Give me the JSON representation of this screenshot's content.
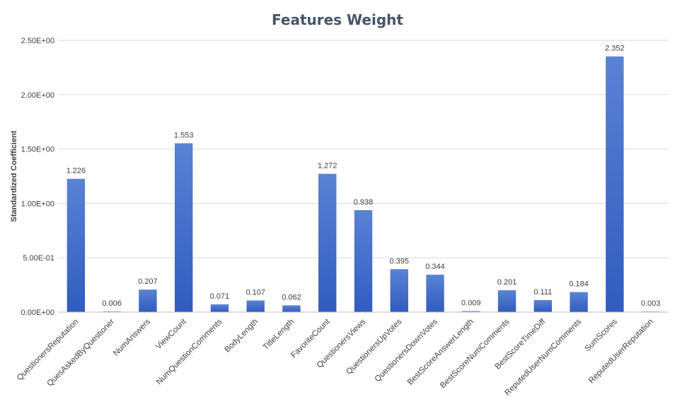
{
  "chart_data": {
    "type": "bar",
    "title": "Features Weight",
    "xlabel": "",
    "ylabel": "Standardized Coefficient",
    "ylim": [
      0,
      2.5
    ],
    "yticks": [
      {
        "value": 0,
        "label": "0.00E+00"
      },
      {
        "value": 0.5,
        "label": "5.00E-01"
      },
      {
        "value": 1.0,
        "label": "1.00E+00"
      },
      {
        "value": 1.5,
        "label": "1.50E+00"
      },
      {
        "value": 2.0,
        "label": "2.00E+00"
      },
      {
        "value": 2.5,
        "label": "2.50E+00"
      }
    ],
    "grid": true,
    "legend": "none",
    "bar_color_top": "#5a82d4",
    "bar_color_bottom": "#2f5cbf",
    "categories": [
      "QuestionersReputation",
      "QuesAskedByQuestioner",
      "NumAnswers",
      "ViewCount",
      "NumQuestionComments",
      "BodyLength",
      "TitleLength",
      "FavoriteCount",
      "QuestionersViews",
      "QuestionersUpVotes",
      "QuestionersDownVotes",
      "BestScoreAnswerLength",
      "BestScoreNumComments",
      "BestScoreTimeDiff",
      "ReputedUserNumComments",
      "SumScores",
      "ReputedUserReputation"
    ],
    "values": [
      1.226,
      0.006,
      0.207,
      1.553,
      0.071,
      0.107,
      0.062,
      1.272,
      0.938,
      0.395,
      0.344,
      0.009,
      0.201,
      0.111,
      0.184,
      2.352,
      0.003
    ],
    "value_labels": [
      "1.226",
      "0.006",
      "0.207",
      "1.553",
      "0.071",
      "0.107",
      "0.062",
      "1.272",
      "0.938",
      "0.395",
      "0.344",
      "0.009",
      "0.201",
      "0.111",
      "0.184",
      "2.352",
      "0.003"
    ]
  }
}
